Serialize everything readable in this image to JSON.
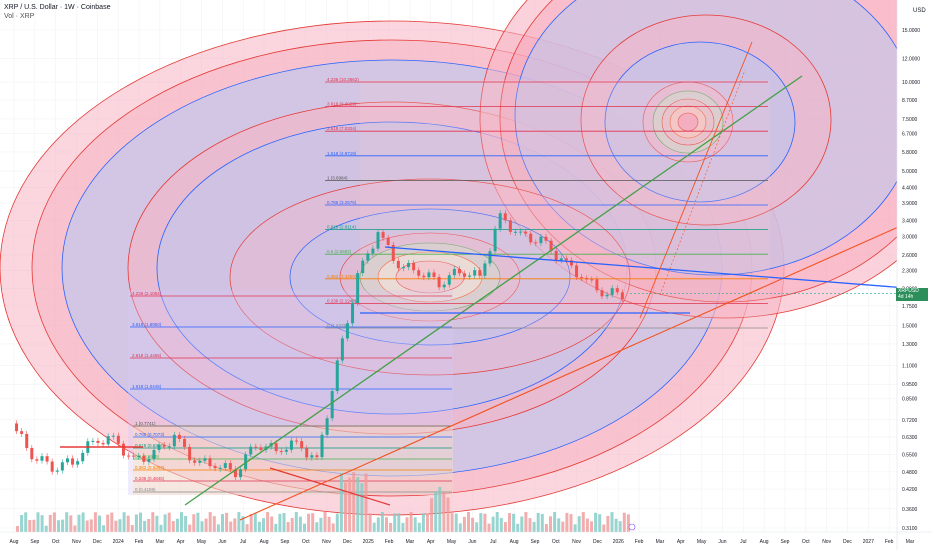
{
  "header": {
    "title": "XRP / U.S. Dollar · 1W · Coinbase",
    "volume_label": "Vol · XRP"
  },
  "axis": {
    "unit": "USD",
    "price_ticks": [
      "15.0000",
      "12.0000",
      "10.0000",
      "8.7000",
      "7.5000",
      "6.7000",
      "5.8000",
      "5.0000",
      "4.4000",
      "3.9000",
      "3.4000",
      "3.0000",
      "2.6000",
      "2.3000",
      "2.0000",
      "1.7500",
      "1.5000",
      "1.3000",
      "1.1000",
      "0.9500",
      "0.8500",
      "0.7200",
      "0.6300",
      "0.5500",
      "0.4800",
      "0.4200",
      "0.3600",
      "0.3100"
    ],
    "time_ticks": [
      "Aug",
      "Sep",
      "Oct",
      "Nov",
      "Dec",
      "2024",
      "Feb",
      "Mar",
      "Apr",
      "May",
      "Jun",
      "Jul",
      "Aug",
      "Sep",
      "Oct",
      "Nov",
      "Dec",
      "2025",
      "Feb",
      "Mar",
      "Apr",
      "May",
      "Jun",
      "Jul",
      "Aug",
      "Sep",
      "Oct",
      "Nov",
      "Dec",
      "2026",
      "Feb",
      "Mar",
      "Apr",
      "May",
      "Jun",
      "Jul",
      "Aug",
      "Sep",
      "Oct",
      "Nov",
      "Dec",
      "2027",
      "Feb",
      "Mar"
    ]
  },
  "price_tag": {
    "symbol": "XRPUSD",
    "value": "1.9228",
    "sub": "4d 14h"
  },
  "fib_upper": [
    {
      "label": "4.236 (10.3662)",
      "color": "#e0334f"
    },
    {
      "label": "3.618 (9.0929)",
      "color": "#e0334f"
    },
    {
      "label": "2.618 (7.0324)",
      "color": "#e0334f"
    },
    {
      "label": "1.618 (4.9719)",
      "color": "#2962ff"
    },
    {
      "label": "1 (3.6984)",
      "color": "#555555"
    },
    {
      "label": "0.786 (3.2575)",
      "color": "#2962ff"
    },
    {
      "label": "0.618 (2.9114)",
      "color": "#089981"
    },
    {
      "label": "0.5 (2.6682)",
      "color": "#4caf50"
    },
    {
      "label": "0.382 (2.4250)",
      "color": "#f57c00"
    },
    {
      "label": "0.236 (2.1242)",
      "color": "#e0334f"
    },
    {
      "label": "0 (1.6379)",
      "color": "#888888"
    }
  ],
  "fib_mid": [
    {
      "label": "4.236 (2.1054)",
      "color": "#e0334f"
    },
    {
      "label": "3.618 (1.8950)",
      "color": "#2962ff"
    },
    {
      "label": "2.618 (1.4455)",
      "color": "#e0334f"
    },
    {
      "label": "1.618 (1.0445)",
      "color": "#2962ff"
    }
  ],
  "fib_lower": [
    {
      "label": "1 (0.7741)",
      "color": "#555555"
    },
    {
      "label": "0.786 (0.7073)",
      "color": "#2962ff"
    },
    {
      "label": "0.618 (0.6357)",
      "color": "#089981"
    },
    {
      "label": "0.5 (0.5905)",
      "color": "#4caf50"
    },
    {
      "label": "0.382 (0.5363)",
      "color": "#f57c00"
    },
    {
      "label": "0.236 (0.4845)",
      "color": "#e0334f"
    },
    {
      "label": "0 (0.4159)",
      "color": "#888888"
    }
  ],
  "colors": {
    "up": "#26a69a",
    "down": "#ef5350",
    "fib_zone_red": "#f8b4c4",
    "fib_zone_blue": "#b9c8f2",
    "trend_green": "#43a047",
    "trend_orange": "#f4511e",
    "trend_blue": "#2962ff"
  },
  "chart_data": {
    "type": "candlestick",
    "symbol": "XRP / U.S. Dollar",
    "timeframe": "1W",
    "y_scale": "log",
    "ylim": [
      0.31,
      15.0
    ],
    "x_range": [
      "2023-07",
      "2027-03"
    ],
    "series": [
      {
        "name": "XRPUSD",
        "close_points": [
          {
            "x": "2023-07",
            "y": 0.7
          },
          {
            "x": "2023-08",
            "y": 0.55
          },
          {
            "x": "2023-09",
            "y": 0.5
          },
          {
            "x": "2023-10",
            "y": 0.52
          },
          {
            "x": "2023-11",
            "y": 0.61
          },
          {
            "x": "2023-12",
            "y": 0.62
          },
          {
            "x": "2024-01",
            "y": 0.52
          },
          {
            "x": "2024-02",
            "y": 0.55
          },
          {
            "x": "2024-03",
            "y": 0.63
          },
          {
            "x": "2024-04",
            "y": 0.52
          },
          {
            "x": "2024-05",
            "y": 0.51
          },
          {
            "x": "2024-06",
            "y": 0.48
          },
          {
            "x": "2024-07",
            "y": 0.6
          },
          {
            "x": "2024-08",
            "y": 0.57
          },
          {
            "x": "2024-09",
            "y": 0.6
          },
          {
            "x": "2024-10",
            "y": 0.52
          },
          {
            "x": "2024-11",
            "y": 1.1
          },
          {
            "x": "2024-12",
            "y": 2.2
          },
          {
            "x": "2025-01",
            "y": 3.1
          },
          {
            "x": "2025-02",
            "y": 2.4
          },
          {
            "x": "2025-03",
            "y": 2.3
          },
          {
            "x": "2025-04",
            "y": 2.1
          },
          {
            "x": "2025-05",
            "y": 2.3
          },
          {
            "x": "2025-06",
            "y": 2.2
          },
          {
            "x": "2025-07",
            "y": 3.5
          },
          {
            "x": "2025-08",
            "y": 3.0
          },
          {
            "x": "2025-09",
            "y": 2.9
          },
          {
            "x": "2025-10",
            "y": 2.5
          },
          {
            "x": "2025-11",
            "y": 2.2
          },
          {
            "x": "2025-12",
            "y": 1.95
          },
          {
            "x": "2026-01",
            "y": 1.92
          }
        ]
      }
    ],
    "last_price": 1.9228,
    "grid": true
  }
}
